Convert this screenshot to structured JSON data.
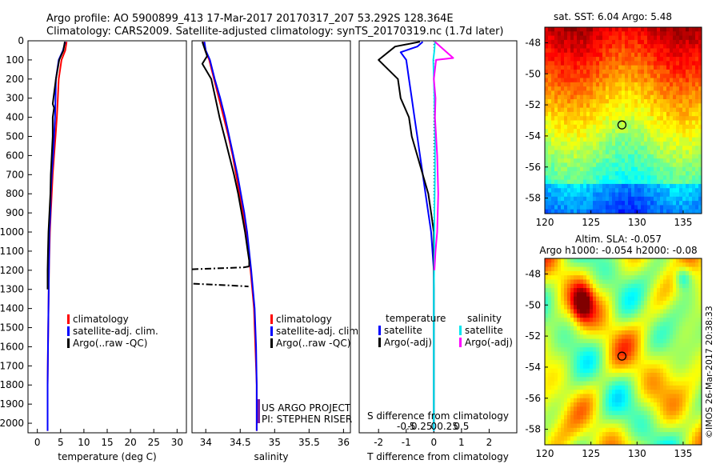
{
  "header": {
    "line1": "Argo profile: AO 5900899_413 17-Mar-2017 20170317_207 53.292S 128.364E",
    "line2": "Climatology: CARS2009. Satellite-adjusted climatology: synTS_20170319.nc (1.7d later)"
  },
  "colors": {
    "climatology": "#ff0000",
    "satellite": "#0000ff",
    "argo": "#000000",
    "sat_sal": "#00e5ee",
    "argo_sal": "#ff00ff"
  },
  "chart_data": [
    {
      "type": "line",
      "id": "temperature",
      "xlabel": "temperature (deg C)",
      "xlim": [
        -2,
        32
      ],
      "ylim": [
        2050,
        0
      ],
      "yticks": [
        0,
        100,
        200,
        300,
        400,
        500,
        600,
        700,
        800,
        900,
        1000,
        1100,
        1200,
        1300,
        1400,
        1500,
        1600,
        1700,
        1800,
        1900,
        2000
      ],
      "xticks": [
        0,
        5,
        10,
        15,
        20,
        25,
        30
      ],
      "legend": {
        "position": "lower-center",
        "entries": [
          "climatology",
          "satellite-adj. clim.",
          "Argo(..raw -QC)"
        ]
      },
      "series": [
        {
          "name": "climatology",
          "color": "#ff0000",
          "x": [
            6.3,
            6.0,
            5.2,
            4.6,
            4.4,
            4.2,
            3.9,
            3.6,
            3.3,
            3.1,
            2.9,
            2.7,
            2.5,
            2.4,
            2.3,
            2.2,
            2.2
          ],
          "y": [
            5,
            50,
            100,
            200,
            300,
            400,
            500,
            600,
            700,
            800,
            900,
            1000,
            1200,
            1400,
            1600,
            1800,
            2040
          ]
        },
        {
          "name": "satellite-adj. clim.",
          "color": "#0000ff",
          "x": [
            6.0,
            5.5,
            4.6,
            4.0,
            3.9,
            3.8,
            3.6,
            3.4,
            3.1,
            2.9,
            2.8,
            2.6,
            2.5,
            2.4,
            2.3,
            2.2,
            2.2
          ],
          "y": [
            5,
            50,
            100,
            200,
            300,
            400,
            500,
            600,
            700,
            800,
            900,
            1000,
            1200,
            1400,
            1600,
            1800,
            2040
          ]
        },
        {
          "name": "Argo(..raw -QC)",
          "color": "#000000",
          "x": [
            5.9,
            5.6,
            4.7,
            4.0,
            3.3,
            3.6,
            3.3,
            3.3,
            3.1,
            2.9,
            2.8,
            2.6,
            2.4,
            2.3,
            2.2,
            2.2
          ],
          "y": [
            5,
            50,
            100,
            200,
            330,
            350,
            400,
            500,
            600,
            700,
            800,
            900,
            1000,
            1100,
            1200,
            1300
          ]
        }
      ]
    },
    {
      "type": "line",
      "id": "salinity",
      "xlabel": "salinity",
      "xlim": [
        33.8,
        36.1
      ],
      "ylim": [
        2050,
        0
      ],
      "xticks": [
        34,
        34.5,
        35,
        35.5,
        36
      ],
      "legend": {
        "position": "lower-right",
        "entries": [
          "climatology",
          "satellite-adj. clim.",
          "Argo(..raw -QC)"
        ]
      },
      "annotation": [
        "US ARGO PROJECT",
        "PI: STEPHEN RISER"
      ],
      "series": [
        {
          "name": "climatology",
          "color": "#ff0000",
          "x": [
            33.97,
            33.99,
            34.05,
            34.12,
            34.19,
            34.26,
            34.33,
            34.39,
            34.44,
            34.49,
            34.54,
            34.58,
            34.65,
            34.7,
            34.72,
            34.74,
            34.74
          ],
          "y": [
            5,
            50,
            100,
            200,
            300,
            400,
            500,
            600,
            700,
            800,
            900,
            1000,
            1200,
            1400,
            1600,
            1800,
            2040
          ]
        },
        {
          "name": "satellite-adj. clim.",
          "color": "#0000ff",
          "x": [
            33.98,
            34.0,
            34.06,
            34.13,
            34.21,
            34.28,
            34.34,
            34.4,
            34.46,
            34.51,
            34.56,
            34.6,
            34.66,
            34.71,
            34.73,
            34.74,
            34.74
          ],
          "y": [
            5,
            50,
            100,
            200,
            300,
            400,
            500,
            600,
            700,
            800,
            900,
            1000,
            1200,
            1400,
            1600,
            1800,
            2040
          ]
        },
        {
          "name": "Argo(..raw -QC)",
          "color": "#000000",
          "x": [
            33.95,
            34.02,
            33.95,
            34.08,
            34.14,
            34.2,
            34.27,
            34.34,
            34.41,
            34.47,
            34.52,
            34.57,
            34.61,
            34.63,
            34.63
          ],
          "y": [
            5,
            80,
            120,
            200,
            300,
            400,
            500,
            600,
            700,
            800,
            900,
            1000,
            1100,
            1150,
            1180
          ]
        }
      ],
      "outliers": [
        {
          "color": "#000000",
          "x": [
            33.8,
            34.55,
            34.63
          ],
          "y": [
            1195,
            1185,
            1180
          ]
        },
        {
          "color": "#000000",
          "x": [
            33.82,
            34.4,
            34.62
          ],
          "y": [
            1270,
            1280,
            1285
          ]
        }
      ]
    },
    {
      "type": "line",
      "id": "difference",
      "xlabel": "T difference from climatology",
      "xlabel_top": "S difference from climatology",
      "xlim": [
        -2.7,
        3.0
      ],
      "ylim": [
        2050,
        0
      ],
      "xticks": [
        -2,
        -1,
        0,
        1,
        2
      ],
      "xticks_top": [
        -0.5,
        -0.25,
        0,
        0.25,
        0.5
      ],
      "legend": {
        "position": "lower",
        "left_title": "temperature",
        "left_entries": [
          "satellite",
          "Argo(-adj)"
        ],
        "right_title": "salinity",
        "right_entries": [
          "satellite",
          "Argo(-adj)"
        ]
      },
      "series": [
        {
          "name": "temperature satellite",
          "color": "#0000ff",
          "x": [
            -0.4,
            -0.6,
            -1.2,
            -1.0,
            -0.9,
            -0.8,
            -0.7,
            -0.6,
            -0.5,
            -0.4,
            -0.3,
            -0.2,
            -0.1,
            0.0,
            0.0
          ],
          "y": [
            5,
            30,
            60,
            100,
            200,
            300,
            400,
            500,
            600,
            700,
            800,
            900,
            1000,
            1200,
            2040
          ]
        },
        {
          "name": "temperature Argo(-adj)",
          "color": "#000000",
          "x": [
            -0.5,
            -1.4,
            -2.0,
            -1.3,
            -1.2,
            -0.9,
            -0.8,
            -0.6,
            -0.4,
            -0.2,
            -0.1,
            0.0,
            0.0,
            0.0
          ],
          "y": [
            5,
            30,
            100,
            200,
            300,
            400,
            500,
            600,
            700,
            800,
            900,
            1000,
            1200,
            2000
          ]
        },
        {
          "name": "salinity satellite",
          "color": "#00e5ee",
          "x": [
            0.02,
            0.01,
            -0.01,
            0.0,
            0.01,
            0.02,
            0.02,
            0.01,
            0.01,
            0.0,
            0.0
          ],
          "y": [
            5,
            50,
            100,
            200,
            300,
            500,
            700,
            900,
            1100,
            1300,
            2040
          ]
        },
        {
          "name": "salinity Argo(-adj)",
          "color": "#ff00ff",
          "x": [
            0.02,
            0.35,
            0.04,
            0.0,
            0.03,
            0.02,
            0.06,
            0.08,
            0.06,
            0.03,
            0.01
          ],
          "y": [
            5,
            90,
            100,
            200,
            300,
            400,
            600,
            800,
            1000,
            1100,
            1200
          ]
        }
      ]
    },
    {
      "type": "heatmap",
      "id": "sst",
      "title": "sat. SST: 6.04  Argo: 5.48",
      "xlim": [
        120,
        137
      ],
      "ylim": [
        -59,
        -47
      ],
      "xticks": [
        120,
        125,
        130,
        135
      ],
      "yticks": [
        -48,
        -50,
        -52,
        -54,
        -56,
        -58
      ],
      "marker": {
        "lon": 128.364,
        "lat": -53.292
      }
    },
    {
      "type": "heatmap",
      "id": "sla",
      "title": "Altim. SLA: -0.057",
      "subtitle": "Argo h1000: -0.054 h2000: -0.08",
      "xlim": [
        120,
        137
      ],
      "ylim": [
        -59,
        -47
      ],
      "xticks": [
        120,
        125,
        130,
        135
      ],
      "yticks": [
        -48,
        -50,
        -52,
        -54,
        -56,
        -58
      ],
      "marker": {
        "lon": 128.364,
        "lat": -53.292
      }
    }
  ],
  "credit": "©IMOS 26-Mar-2017 20:38:33"
}
